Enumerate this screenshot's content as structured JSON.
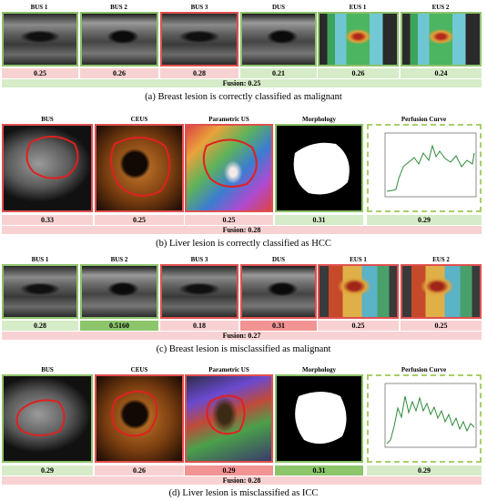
{
  "panel_a": {
    "headers": [
      "BUS 1",
      "BUS 2",
      "BUS 3",
      "DUS",
      "EUS 1",
      "EUS 2"
    ],
    "scores": [
      "0.25",
      "0.26",
      "0.28",
      "0.21",
      "0.26",
      "0.24"
    ],
    "fusion": "Fusion:  0.25",
    "caption": "(a) Breast lesion is correctly classified as malignant"
  },
  "panel_b": {
    "headers": [
      "BUS",
      "CEUS",
      "Parametric US",
      "Morphology",
      "Perfusion Curve"
    ],
    "scores": [
      "0.33",
      "0.25",
      "0.25",
      "0.31",
      "0.29"
    ],
    "fusion": "Fusion:  0.28",
    "caption": "(b) Liver lesion is correctly classified as HCC"
  },
  "panel_c": {
    "headers": [
      "BUS 1",
      "BUS 2",
      "BUS 3",
      "DUS",
      "EUS 1",
      "EUS 2"
    ],
    "scores": [
      "0.28",
      "0.5160",
      "0.18",
      "0.31",
      "0.25",
      "0.25"
    ],
    "fusion": "Fusion:  0.27",
    "caption": "(c) Breast lesion is misclassified as malignant"
  },
  "panel_d": {
    "headers": [
      "BUS",
      "CEUS",
      "Parametric US",
      "Morphology",
      "Perfusion Curve"
    ],
    "scores": [
      "0.29",
      "0.26",
      "0.29",
      "0.31",
      "0.29"
    ],
    "fusion": "Fusion:  0.28",
    "caption": "(d) Liver lesion is misclassified as ICC"
  },
  "colors": {
    "green_border": "#8dc26a",
    "red_border": "#e0504f",
    "light_green": "#d6ecc8",
    "dark_green": "#8cc56a",
    "light_red": "#f8d2d2",
    "dark_red": "#f19493"
  }
}
